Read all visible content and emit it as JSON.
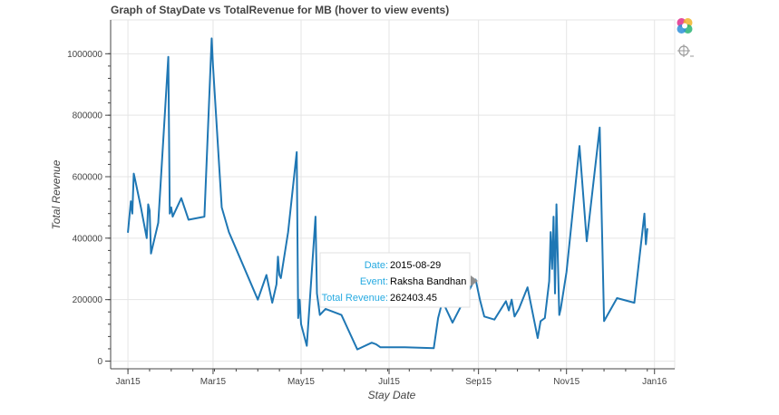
{
  "chart_data": {
    "type": "line",
    "title": "Graph of StayDate vs TotalRevenue for MB (hover to view events)",
    "xlabel": "Stay Date",
    "ylabel": "Total Revenue",
    "x_ticks": [
      "Jan15",
      "Mar15",
      "May15",
      "Jul15",
      "Sep15",
      "Nov15",
      "Jan16"
    ],
    "y_ticks": [
      "0",
      "200000",
      "400000",
      "600000",
      "800000",
      "1000000"
    ],
    "xlim": [
      "2014-12-20",
      "2016-01-15"
    ],
    "ylim": [
      -25000,
      1110000
    ],
    "grid": true,
    "series": [
      {
        "color": "#1f77b4",
        "x": [
          "2015-01-01",
          "2015-01-03",
          "2015-01-04",
          "2015-01-05",
          "2015-01-06",
          "2015-01-10",
          "2015-01-14",
          "2015-01-15",
          "2015-01-16",
          "2015-01-17",
          "2015-01-22",
          "2015-01-29",
          "2015-01-30",
          "2015-01-31",
          "2015-02-01",
          "2015-02-07",
          "2015-02-12",
          "2015-02-23",
          "2015-02-28",
          "2015-03-01",
          "2015-03-07",
          "2015-03-12",
          "2015-04-01",
          "2015-04-07",
          "2015-04-11",
          "2015-04-14",
          "2015-04-15",
          "2015-04-16",
          "2015-04-17",
          "2015-04-22",
          "2015-04-28",
          "2015-04-29",
          "2015-04-30",
          "2015-05-01",
          "2015-05-05",
          "2015-05-11",
          "2015-05-12",
          "2015-05-14",
          "2015-05-18",
          "2015-05-29",
          "2015-06-09",
          "2015-06-19",
          "2015-06-22",
          "2015-06-25",
          "2015-07-12",
          "2015-08-01",
          "2015-08-04",
          "2015-08-07",
          "2015-08-14",
          "2015-08-29",
          "2015-08-30",
          "2015-09-02",
          "2015-09-05",
          "2015-09-12",
          "2015-09-20",
          "2015-09-22",
          "2015-09-24",
          "2015-09-26",
          "2015-09-29",
          "2015-10-05",
          "2015-10-12",
          "2015-10-14",
          "2015-10-17",
          "2015-10-20",
          "2015-10-21",
          "2015-10-22",
          "2015-10-23",
          "2015-10-24",
          "2015-10-25",
          "2015-10-27",
          "2015-10-28",
          "2015-11-01",
          "2015-11-10",
          "2015-11-15",
          "2015-11-24",
          "2015-11-27",
          "2015-12-06",
          "2015-12-18",
          "2015-12-25",
          "2015-12-26",
          "2015-12-27"
        ],
        "y": [
          420000,
          520000,
          480000,
          610000,
          590000,
          500000,
          400000,
          510000,
          490000,
          350000,
          450000,
          990000,
          480000,
          500000,
          470000,
          530000,
          460000,
          470000,
          1050000,
          960000,
          500000,
          420000,
          200000,
          280000,
          190000,
          250000,
          340000,
          280000,
          270000,
          420000,
          680000,
          140000,
          200000,
          120000,
          50000,
          470000,
          220000,
          150000,
          170000,
          150000,
          38000,
          60000,
          55000,
          45000,
          45000,
          42000,
          140000,
          195000,
          125000,
          262403,
          265000,
          200000,
          145000,
          135000,
          195000,
          165000,
          200000,
          145000,
          170000,
          240000,
          75000,
          130000,
          140000,
          260000,
          420000,
          300000,
          470000,
          220000,
          510000,
          150000,
          170000,
          290000,
          700000,
          390000,
          760000,
          130000,
          205000,
          190000,
          480000,
          380000,
          430000
        ]
      }
    ]
  },
  "tooltip": {
    "date_key": "Date:",
    "date_value": "2015-08-29",
    "event_key": "Event:",
    "event_value": "Raksha Bandhan",
    "revenue_key": "Total Revenue:",
    "revenue_value": "262403.45"
  },
  "toolbar": {
    "logo_icon": "bokeh-logo-icon",
    "hover_icon": "crosshair-hover-icon"
  }
}
